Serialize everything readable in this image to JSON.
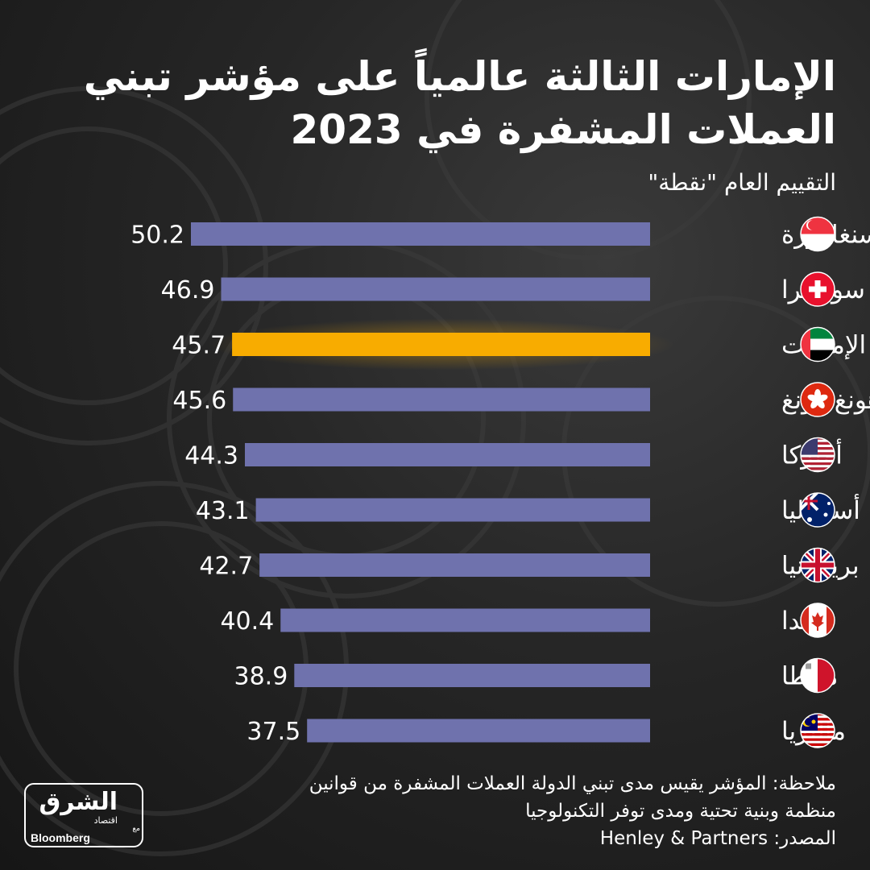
{
  "title_line1": "الإمارات الثالثة عالمياً على مؤشر تبني",
  "title_line2": "العملات المشفرة في 2023",
  "note_line1": "ملاحظة: المؤشر يقيس مدى تبني الدولة العملات المشفرة من قوانين",
  "note_line2": "منظمة وبنية تحتية ومدى توفر التكنولوجيا",
  "source": "المصدر: Henley & Partners",
  "logo": {
    "name": "الشرق",
    "sub": "اقتصاد",
    "with": "مع",
    "partner": "Bloomberg"
  },
  "colors": {
    "bar": "#6f72ad",
    "highlight": "#f8ac00",
    "text": "#ffffff"
  },
  "chart_data": {
    "type": "bar",
    "orientation": "horizontal",
    "title": "الإمارات الثالثة عالمياً على مؤشر تبني العملات المشفرة في 2023",
    "ylabel": "التقييم العام \"نقطة\"",
    "categories": [
      "سنغافورة",
      "سويسرا",
      "الإمارات",
      "هونغ كونغ",
      "أميركا",
      "أستراليا",
      "بريطانيا",
      "كندا",
      "مالطا",
      "ماليزيا"
    ],
    "values": [
      50.2,
      46.9,
      45.7,
      45.6,
      44.3,
      43.1,
      42.7,
      40.4,
      38.9,
      37.5
    ],
    "flags": [
      "singapore-flag-icon",
      "switzerland-flag-icon",
      "uae-flag-icon",
      "hong-kong-flag-icon",
      "usa-flag-icon",
      "australia-flag-icon",
      "uk-flag-icon",
      "canada-flag-icon",
      "malta-flag-icon",
      "malaysia-flag-icon"
    ],
    "highlight_index": 2,
    "xlim": [
      0,
      50.2
    ],
    "grid": false,
    "legend": "none"
  }
}
